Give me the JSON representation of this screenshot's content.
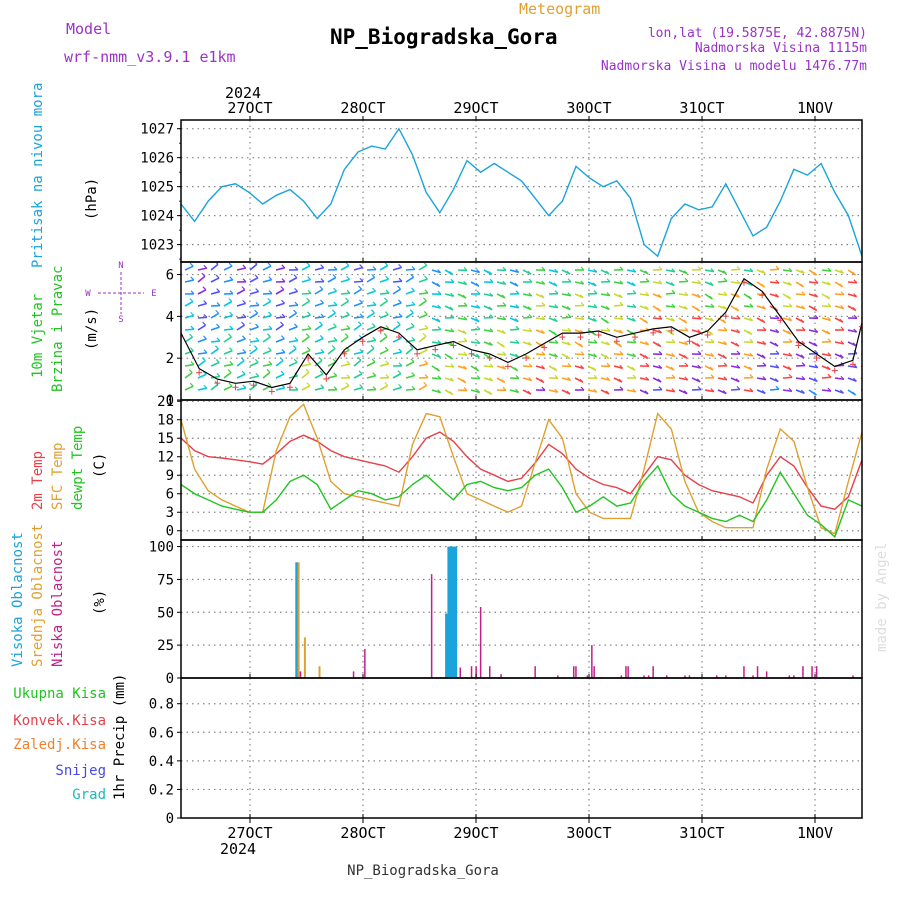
{
  "header": {
    "model_label": "Model",
    "model_name": "wrf-nmm_v3.9.1 e1km",
    "meteogram_label": "Meteogram",
    "station_title": "NP_Biogradska_Gora",
    "coords": "lon,lat (19.5875E, 42.8875N)",
    "elevation": "Nadmorska Visina 1115m",
    "model_elevation": "Nadmorska Visina u modelu 1476.77m",
    "footer_station": "NP_Biogradska_Gora",
    "watermark": "made by Angel"
  },
  "time_axis": {
    "year_top": "2024",
    "year_bottom": "2024",
    "day_labels": [
      "27OCT",
      "28OCT",
      "29OCT",
      "30OCT",
      "31OCT",
      "1NOV"
    ],
    "start_hour": 0,
    "end_hour": 150
  },
  "panel_labels": {
    "pressure": [
      "Pritisak na nivou mora",
      "(hPa)"
    ],
    "wind": [
      "10m Vjetar",
      "Brzina i Pravac",
      "(m/s)"
    ],
    "wind_compass": [
      "N",
      "W",
      "E",
      "S"
    ],
    "temp": [
      "2m Temp",
      "SFC Temp",
      "dewpt Temp",
      "(C)"
    ],
    "cloud": [
      "Visoka Oblacnost",
      "Srednja Oblacnost",
      "Niska Oblacnost",
      "(%)"
    ],
    "precip_legend": [
      "Ukupna Kisa",
      "Konvek.Kisa",
      "Zaledj.Kisa",
      "Snijeg",
      "Grad"
    ],
    "precip_unit": "1hr Precip (mm)"
  },
  "colors": {
    "pressure": "#1ba3dc",
    "temp2m": "#e8404a",
    "sfc": "#e0a030",
    "dewpt": "#22c422",
    "high_cloud": "#1ba3dc",
    "mid_cloud": "#e0a030",
    "low_cloud": "#c0208a",
    "purple": "#9a32c8",
    "total_rain": "#22c422",
    "conv_rain": "#e8404a",
    "frz_rain": "#f08030",
    "snow": "#4848e0",
    "hail": "#20b8b8"
  },
  "chart_data": [
    {
      "type": "line",
      "panel": "pressure",
      "ylabel": "(hPa)",
      "ylim": [
        1022.4,
        1027.3
      ],
      "yticks": [
        1023,
        1024,
        1025,
        1026,
        1027
      ],
      "grid": true,
      "series": [
        {
          "name": "Pritisak na nivou mora",
          "x": [
            0,
            3,
            6,
            9,
            12,
            15,
            18,
            21,
            24,
            27,
            30,
            33,
            36,
            39,
            42,
            45,
            48,
            51,
            54,
            57,
            60,
            63,
            66,
            69,
            72,
            75,
            78,
            81,
            84,
            87,
            90,
            93,
            96,
            99,
            102,
            105,
            108,
            111,
            114,
            117,
            120,
            123,
            126,
            129,
            132,
            135,
            138,
            141,
            144,
            147,
            150
          ],
          "values": [
            1024.4,
            1023.8,
            1024.5,
            1025.0,
            1025.1,
            1024.8,
            1024.4,
            1024.7,
            1024.9,
            1024.5,
            1023.9,
            1024.4,
            1025.6,
            1026.2,
            1026.4,
            1026.3,
            1027.0,
            1026.1,
            1024.8,
            1024.1,
            1024.9,
            1025.9,
            1025.5,
            1025.8,
            1025.5,
            1025.2,
            1024.6,
            1024.0,
            1024.5,
            1025.7,
            1025.3,
            1025.0,
            1025.2,
            1024.6,
            1023.0,
            1022.6,
            1023.9,
            1024.4,
            1024.2,
            1024.3,
            1025.1,
            1024.2,
            1023.3,
            1023.6,
            1024.5,
            1025.6,
            1025.4,
            1025.8,
            1024.8,
            1024.0,
            1022.6
          ]
        }
      ]
    },
    {
      "type": "line",
      "panel": "wind",
      "ylabel": "(m/s)",
      "ylim": [
        0,
        6.6
      ],
      "yticks": [
        0,
        2,
        4,
        6
      ],
      "grid": true,
      "series": [
        {
          "name": "10m Vjetar Brzina",
          "x": [
            0,
            4,
            8,
            12,
            16,
            20,
            24,
            28,
            32,
            36,
            40,
            44,
            48,
            52,
            56,
            60,
            64,
            68,
            72,
            76,
            80,
            84,
            88,
            92,
            96,
            100,
            104,
            108,
            112,
            116,
            120,
            124,
            128,
            132,
            136,
            140,
            144,
            148,
            150
          ],
          "values": [
            3.2,
            1.5,
            1.0,
            0.8,
            0.9,
            0.6,
            0.8,
            2.2,
            1.2,
            2.4,
            3.0,
            3.5,
            3.2,
            2.4,
            2.6,
            2.8,
            2.4,
            2.2,
            1.8,
            2.2,
            2.7,
            3.2,
            3.2,
            3.3,
            3.0,
            3.2,
            3.4,
            3.5,
            3.0,
            3.3,
            4.2,
            5.8,
            5.2,
            4.0,
            2.8,
            2.2,
            1.6,
            1.9,
            3.7
          ]
        }
      ]
    },
    {
      "type": "line",
      "panel": "temp",
      "ylabel": "(C)",
      "ylim": [
        -1.5,
        21.2
      ],
      "yticks": [
        0,
        3,
        6,
        9,
        12,
        15,
        18,
        21
      ],
      "grid": true,
      "series": [
        {
          "name": "2m Temp",
          "x": [
            0,
            3,
            6,
            9,
            12,
            15,
            18,
            21,
            24,
            27,
            30,
            33,
            36,
            39,
            42,
            45,
            48,
            51,
            54,
            57,
            60,
            63,
            66,
            69,
            72,
            75,
            78,
            81,
            84,
            87,
            90,
            93,
            96,
            99,
            102,
            105,
            108,
            111,
            114,
            117,
            120,
            123,
            126,
            129,
            132,
            135,
            138,
            141,
            144,
            147,
            150
          ],
          "values": [
            15.0,
            13.0,
            12.0,
            11.8,
            11.5,
            11.2,
            10.8,
            12.5,
            14.5,
            15.5,
            14.5,
            13.0,
            12.0,
            11.5,
            11.0,
            10.5,
            9.5,
            12.0,
            15.0,
            16.0,
            14.5,
            12.0,
            10.0,
            9.0,
            8.0,
            8.5,
            11.0,
            14.0,
            12.5,
            10.0,
            8.5,
            7.5,
            7.0,
            6.0,
            9.0,
            12.0,
            11.5,
            9.0,
            7.5,
            6.5,
            6.0,
            5.5,
            4.5,
            9.0,
            12.0,
            10.5,
            7.0,
            4.0,
            3.5,
            5.5,
            11.5
          ]
        },
        {
          "name": "SFC Temp",
          "x": [
            0,
            3,
            6,
            9,
            12,
            15,
            18,
            21,
            24,
            27,
            30,
            33,
            36,
            39,
            42,
            45,
            48,
            51,
            54,
            57,
            60,
            63,
            66,
            69,
            72,
            75,
            78,
            81,
            84,
            87,
            90,
            93,
            96,
            99,
            102,
            105,
            108,
            111,
            114,
            117,
            120,
            123,
            126,
            129,
            132,
            135,
            138,
            141,
            144,
            147,
            150
          ],
          "values": [
            18.0,
            10.0,
            6.5,
            5.0,
            4.0,
            3.0,
            3.0,
            13.0,
            18.5,
            20.5,
            15.0,
            8.0,
            6.0,
            5.5,
            5.0,
            4.5,
            4.0,
            14.0,
            19.0,
            18.5,
            12.0,
            6.0,
            5.0,
            4.0,
            3.0,
            4.0,
            11.0,
            18.0,
            15.0,
            6.0,
            3.0,
            2.0,
            2.0,
            2.0,
            10.0,
            19.0,
            16.5,
            8.0,
            3.0,
            1.5,
            0.5,
            0.5,
            0.5,
            10.0,
            16.5,
            14.5,
            7.0,
            0.5,
            -0.5,
            8.0,
            16.0
          ]
        },
        {
          "name": "dewpt Temp",
          "x": [
            0,
            3,
            6,
            9,
            12,
            15,
            18,
            21,
            24,
            27,
            30,
            33,
            36,
            39,
            42,
            45,
            48,
            51,
            54,
            57,
            60,
            63,
            66,
            69,
            72,
            75,
            78,
            81,
            84,
            87,
            90,
            93,
            96,
            99,
            102,
            105,
            108,
            111,
            114,
            117,
            120,
            123,
            126,
            129,
            132,
            135,
            138,
            141,
            144,
            147,
            150
          ],
          "values": [
            7.5,
            6.0,
            5.0,
            4.0,
            3.5,
            3.0,
            3.0,
            5.0,
            8.0,
            9.0,
            7.5,
            3.5,
            5.0,
            6.5,
            6.0,
            5.0,
            5.5,
            7.5,
            9.0,
            7.0,
            5.0,
            7.5,
            8.0,
            7.0,
            6.5,
            7.0,
            9.0,
            10.0,
            7.0,
            3.0,
            4.0,
            5.5,
            4.0,
            4.5,
            8.0,
            10.5,
            6.0,
            4.0,
            3.0,
            2.0,
            1.5,
            2.5,
            1.5,
            5.0,
            9.5,
            6.0,
            2.5,
            1.0,
            -1.0,
            5.0,
            4.0
          ]
        }
      ]
    },
    {
      "type": "bar",
      "panel": "cloud",
      "ylabel": "(%)",
      "ylim": [
        0,
        105
      ],
      "yticks": [
        0,
        25,
        50,
        75,
        100
      ],
      "grid": true,
      "series": [
        {
          "name": "Visoka Oblacnost",
          "x": [
            25.5,
            58.5,
            59.0,
            59.5,
            60.0,
            60.5
          ],
          "values": [
            88,
            49,
            100,
            100,
            100,
            100
          ]
        },
        {
          "name": "Srednja Oblacnost",
          "x": [
            25.9,
            27.3,
            30.5
          ],
          "values": [
            88,
            31,
            9
          ]
        },
        {
          "name": "Niska Oblacnost",
          "x": [
            26.3,
            38.0,
            40.5,
            55.2,
            61.5,
            64.0,
            65.0,
            66.0,
            68.0,
            70.5,
            78.0,
            83.0,
            86.5,
            87.0,
            89.5,
            90.5,
            91.0,
            97.0,
            98.0,
            98.5,
            102.0,
            103.0,
            104.0,
            107.0,
            111.0,
            112.0,
            118.0,
            120.0,
            124.0,
            126.0,
            127.0,
            129.0,
            134.0,
            135.0,
            137.0,
            139.0,
            140.0,
            148.0
          ],
          "values": [
            5,
            5,
            22,
            79,
            8,
            9,
            9,
            54,
            9,
            3,
            9,
            2,
            9,
            9,
            2,
            25,
            9,
            2,
            9,
            9,
            2,
            2,
            9,
            2,
            2,
            2,
            2,
            2,
            9,
            2,
            9,
            5,
            2,
            2,
            9,
            9,
            9,
            2
          ]
        }
      ]
    },
    {
      "type": "bar",
      "panel": "precip",
      "ylabel": "1hr Precip (mm)",
      "ylim": [
        0,
        0.98
      ],
      "yticks": [
        0,
        0.2,
        0.4,
        0.6,
        0.8
      ],
      "grid": true,
      "series": []
    }
  ]
}
